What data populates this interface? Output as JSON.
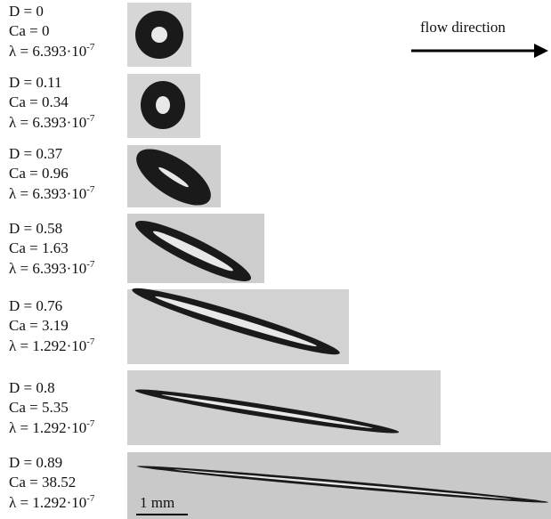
{
  "annotation": "flow direction",
  "scale_bar": "1 mm",
  "panels": [
    {
      "D": "D = 0",
      "Ca": "Ca = 0",
      "lambda": "λ = 6.393·10",
      "lambda_exp": "-7"
    },
    {
      "D": "D = 0.11",
      "Ca": "Ca = 0.34",
      "lambda": "λ = 6.393·10",
      "lambda_exp": "-7"
    },
    {
      "D": "D = 0.37",
      "Ca": "Ca = 0.96",
      "lambda": "λ = 6.393·10",
      "lambda_exp": "-7"
    },
    {
      "D": "D = 0.58",
      "Ca": "Ca = 1.63",
      "lambda": "λ = 6.393·10",
      "lambda_exp": "-7"
    },
    {
      "D": "D = 0.76",
      "Ca": "Ca = 3.19",
      "lambda": "λ = 1.292·10",
      "lambda_exp": "-7"
    },
    {
      "D": "D = 0.8",
      "Ca": "Ca = 5.35",
      "lambda": "λ = 1.292·10",
      "lambda_exp": "-7"
    },
    {
      "D": "D = 0.89",
      "Ca": "Ca = 38.52",
      "lambda": "λ = 1.292·10",
      "lambda_exp": "-7"
    }
  ]
}
